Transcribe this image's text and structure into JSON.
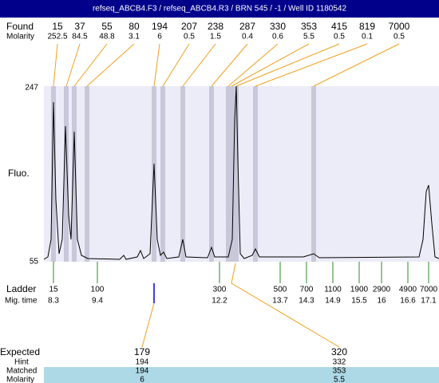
{
  "header": {
    "title": "refseq_ABCB4.F3 / refseq_ABCB4.R3 / BRN 545 / -1 / Well ID 1180542"
  },
  "found": {
    "label": "Found",
    "molarity_label": "Molarity",
    "peaks": [
      {
        "size": "15",
        "molarity": "252.5"
      },
      {
        "size": "37",
        "molarity": "84.5"
      },
      {
        "size": "55",
        "molarity": "48.8"
      },
      {
        "size": "80",
        "molarity": "3.1"
      },
      {
        "size": "194",
        "molarity": "6"
      },
      {
        "size": "207",
        "molarity": "0.5"
      },
      {
        "size": "238",
        "molarity": "1.5"
      },
      {
        "size": "287",
        "molarity": "0.4"
      },
      {
        "size": "330",
        "molarity": "0.6"
      },
      {
        "size": "353",
        "molarity": "5.5"
      },
      {
        "size": "415",
        "molarity": "0.5"
      },
      {
        "size": "819",
        "molarity": "0.1"
      },
      {
        "size": "7000",
        "molarity": "0.5"
      }
    ]
  },
  "axis": {
    "top": "247",
    "bottom": "55",
    "label": "Fluo."
  },
  "ladder": {
    "label": "Ladder",
    "time_label": "Mig. time",
    "peaks": [
      {
        "size": "15",
        "time": "8.3"
      },
      {
        "size": "100",
        "time": "9.4"
      },
      {
        "size": "300",
        "time": "12.2"
      },
      {
        "size": "500",
        "time": "13.7"
      },
      {
        "size": "700",
        "time": "14.3"
      },
      {
        "size": "1100",
        "time": "14.9"
      },
      {
        "size": "1900",
        "time": "15.5"
      },
      {
        "size": "2900",
        "time": "16"
      },
      {
        "size": "4900",
        "time": "16.6"
      },
      {
        "size": "7000",
        "time": "17.1"
      }
    ]
  },
  "expected": {
    "label": "Expected",
    "hint_label": "Hint",
    "matched_label": "Matched",
    "molarity_label": "Molarity",
    "items": [
      {
        "size": "179",
        "hint": "194",
        "matched": "194",
        "molarity": "6"
      },
      {
        "size": "320",
        "hint": "332",
        "matched": "353",
        "molarity": "5.5"
      }
    ]
  }
}
